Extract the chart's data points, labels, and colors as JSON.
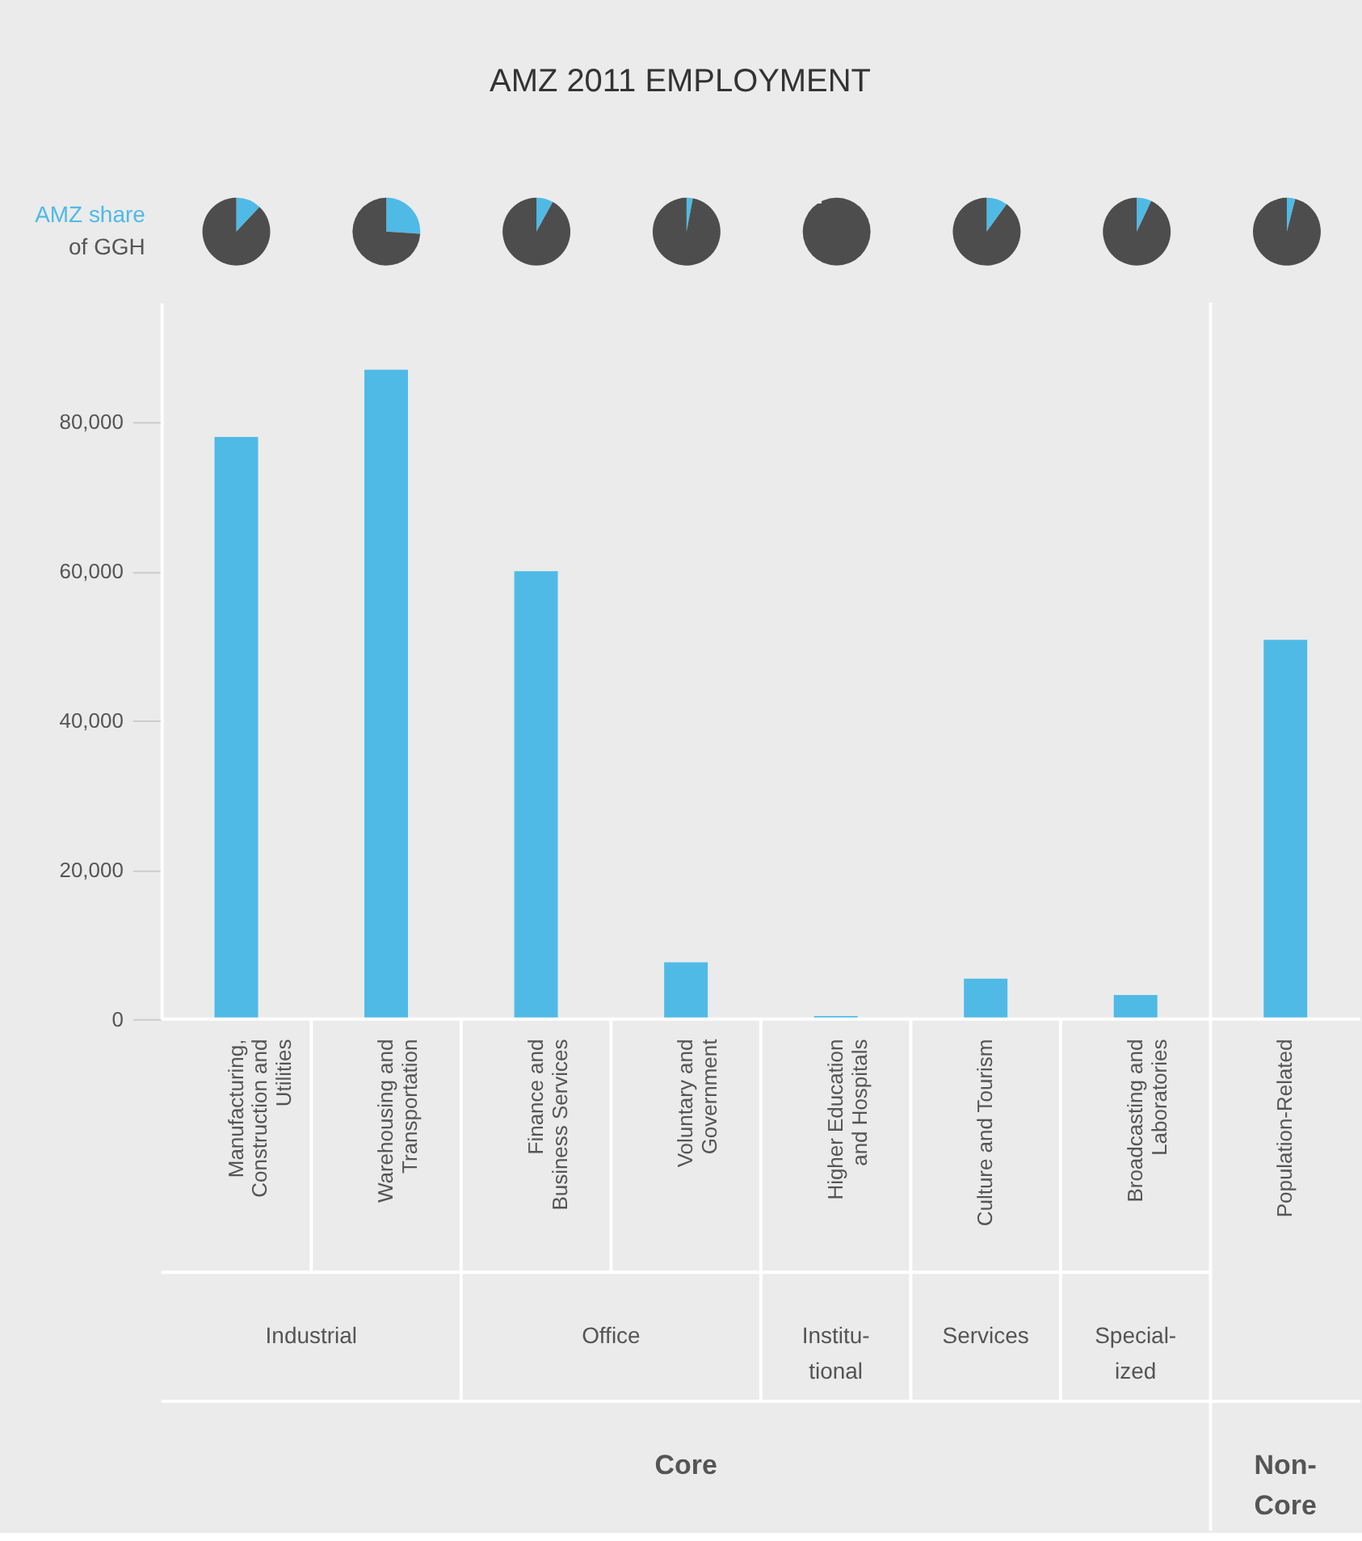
{
  "chart_data": [
    {
      "type": "other",
      "title": "AMZ 2011 EMPLOYMENT"
    },
    {
      "type": "other",
      "annotations": [
        "AMZ share",
        "of GGH"
      ]
    },
    {
      "type": "pie",
      "categories": [
        null,
        null
      ],
      "values": [
        12,
        88
      ],
      "colors": [
        "#4fbae6",
        "#4d4d4d"
      ]
    },
    {
      "type": "pie",
      "categories": [
        null,
        null
      ],
      "values": [
        26,
        74
      ],
      "colors": [
        "#4fbae6",
        "#4d4d4d"
      ]
    },
    {
      "type": "pie",
      "categories": [
        null,
        null
      ],
      "values": [
        8,
        92
      ],
      "colors": [
        "#4fbae6",
        "#4d4d4d"
      ]
    },
    {
      "type": "pie",
      "categories": [
        null,
        null
      ],
      "values": [
        3,
        97
      ],
      "colors": [
        "#4fbae6",
        "#4d4d4d"
      ]
    },
    {
      "type": "pie",
      "categories": [
        null,
        null
      ],
      "values": [
        0,
        100
      ],
      "colors": [
        "#4fbae6",
        "#4d4d4d"
      ]
    },
    {
      "type": "pie",
      "categories": [
        null,
        null
      ],
      "values": [
        10,
        90
      ],
      "colors": [
        "#4fbae6",
        "#4d4d4d"
      ]
    },
    {
      "type": "pie",
      "categories": [
        null,
        null
      ],
      "values": [
        7,
        93
      ],
      "colors": [
        "#4fbae6",
        "#4d4d4d"
      ]
    },
    {
      "type": "pie",
      "categories": [
        null,
        null
      ],
      "values": [
        4,
        96
      ],
      "colors": [
        "#4fbae6",
        "#4d4d4d"
      ]
    },
    {
      "type": "bar",
      "categories": [
        "Manufacturing, Construction and Utilities",
        "Warehousing and Transportation",
        "Finance and Business Services",
        "Voluntary and Government",
        "Higher Education and Hospitals",
        "Culture and Tourism",
        "Broadcasting and Laboratories",
        "Population-Related"
      ],
      "values": [
        78000,
        87000,
        60000,
        7600,
        400,
        5400,
        3200,
        50800
      ],
      "color": "#4fbae6",
      "ylim": [
        0,
        96000
      ],
      "yticks": [
        0,
        {
          "value": 20000,
          "label": "20,000"
        },
        {
          "value": 40000,
          "label": "40,000"
        },
        {
          "value": 60000,
          "label": "60,000"
        },
        {
          "value": 80000,
          "label": "80,000"
        }
      ],
      "grid": false,
      "annotations": [
        "Industrial",
        "Office",
        "Institu-\ntional",
        "Services",
        "Special-\nized",
        "Core",
        "Non-\nCore"
      ]
    }
  ]
}
